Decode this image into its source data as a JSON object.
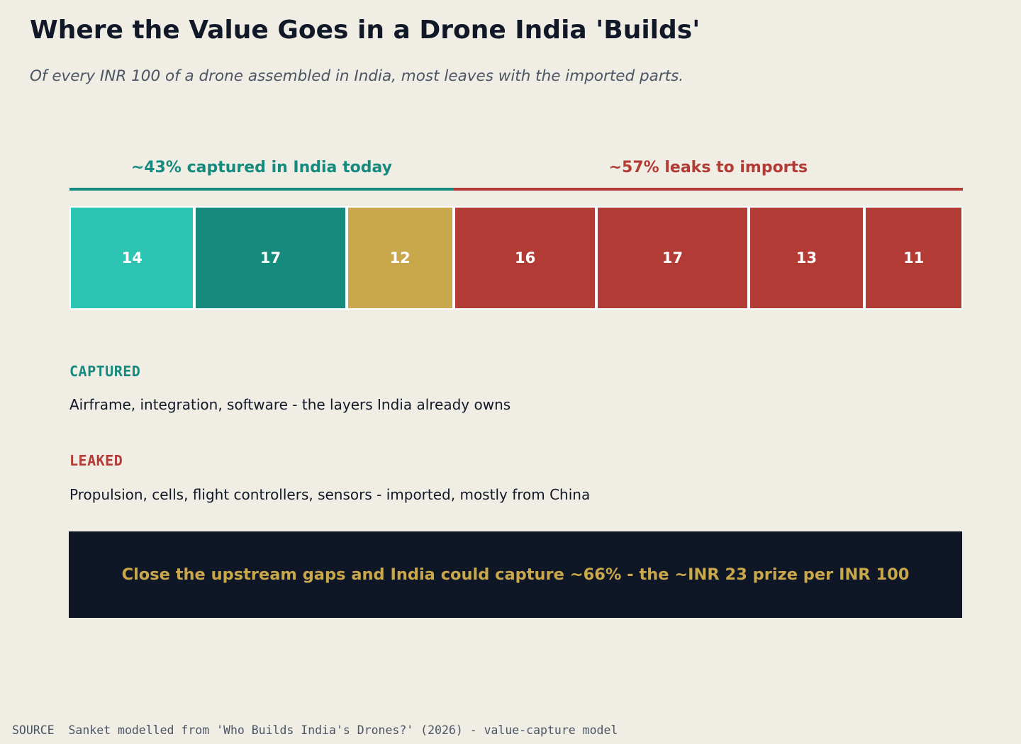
{
  "header": {
    "title": "Where the Value Goes in a Drone India 'Builds'",
    "subtitle": "Of every INR 100 of a drone assembled in India, most leaves with the imported parts."
  },
  "chart_data": {
    "type": "bar",
    "orientation": "horizontal-stacked",
    "total": 100,
    "segments": [
      {
        "value": 14,
        "label": "14",
        "group": "captured",
        "color": "#2cc5b3"
      },
      {
        "value": 17,
        "label": "17",
        "group": "captured",
        "color": "#168b7d"
      },
      {
        "value": 12,
        "label": "12",
        "group": "captured",
        "color": "#c9a84b"
      },
      {
        "value": 16,
        "label": "16",
        "group": "leaked",
        "color": "#b33b35"
      },
      {
        "value": 17,
        "label": "17",
        "group": "leaked",
        "color": "#b33b35"
      },
      {
        "value": 13,
        "label": "13",
        "group": "leaked",
        "color": "#b33b35"
      },
      {
        "value": 11,
        "label": "11",
        "group": "leaked",
        "color": "#b33b35"
      }
    ],
    "groups": [
      {
        "key": "captured",
        "label": "~43% captured in India today",
        "share": 43,
        "color": "#168b7d"
      },
      {
        "key": "leaked",
        "label": "~57% leaks to imports",
        "share": 57,
        "color": "#b33b35"
      }
    ]
  },
  "legend": {
    "captured": {
      "heading": "CAPTURED",
      "description": "Airframe, integration, software - the layers India already owns"
    },
    "leaked": {
      "heading": "LEAKED",
      "description": "Propulsion, cells, flight controllers, sensors - imported, mostly from China"
    }
  },
  "callout": {
    "text": "Close the upstream gaps and India could capture ~66% - the ~INR 23 prize per INR 100"
  },
  "footer": {
    "source": "SOURCE  Sanket modelled from 'Who Builds India's Drones?' (2026) - value-capture model"
  }
}
